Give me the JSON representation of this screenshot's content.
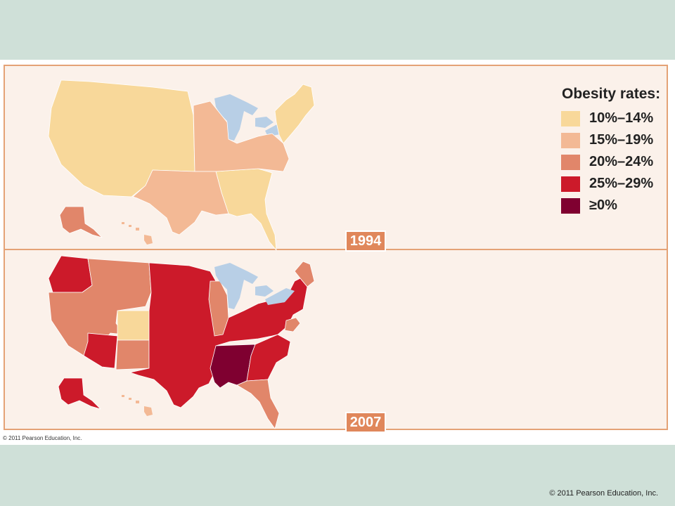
{
  "legend": {
    "title": "Obesity rates:",
    "items": [
      {
        "label": "10%–14%",
        "color": "#f8d89a"
      },
      {
        "label": "15%–19%",
        "color": "#f3b995"
      },
      {
        "label": "20%–24%",
        "color": "#e1866a"
      },
      {
        "label": "25%–29%",
        "color": "#cc1a2a"
      },
      {
        "label": "≥0%",
        "color": "#7f0030"
      }
    ]
  },
  "maps": [
    {
      "year": "1994"
    },
    {
      "year": "2007"
    }
  ],
  "colors": {
    "background": "#cfe0d8",
    "frame_border": "#e4a276",
    "frame_fill": "#fbf1ea",
    "water": "#b8cfe6",
    "year_tag": "#e0875b"
  },
  "copyright_inner": "© 2011 Pearson Education, Inc.",
  "copyright_footer": "© 2011 Pearson Education, Inc."
}
